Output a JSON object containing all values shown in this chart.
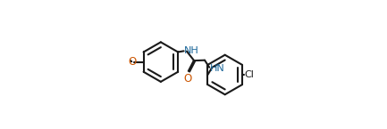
{
  "bg_color": "#ffffff",
  "line_color": "#1a1a1a",
  "o_color": "#cc5500",
  "nh_color": "#1a6699",
  "cl_color": "#1a1a1a",
  "figsize": [
    4.33,
    1.45
  ],
  "dpi": 100,
  "lw": 1.5,
  "fs": 8.0,
  "r1cx": 0.245,
  "r1cy": 0.52,
  "r2cx": 0.745,
  "r2cy": 0.42,
  "ring_r": 0.155,
  "xlim": [
    0,
    1
  ],
  "ylim": [
    0,
    1
  ]
}
